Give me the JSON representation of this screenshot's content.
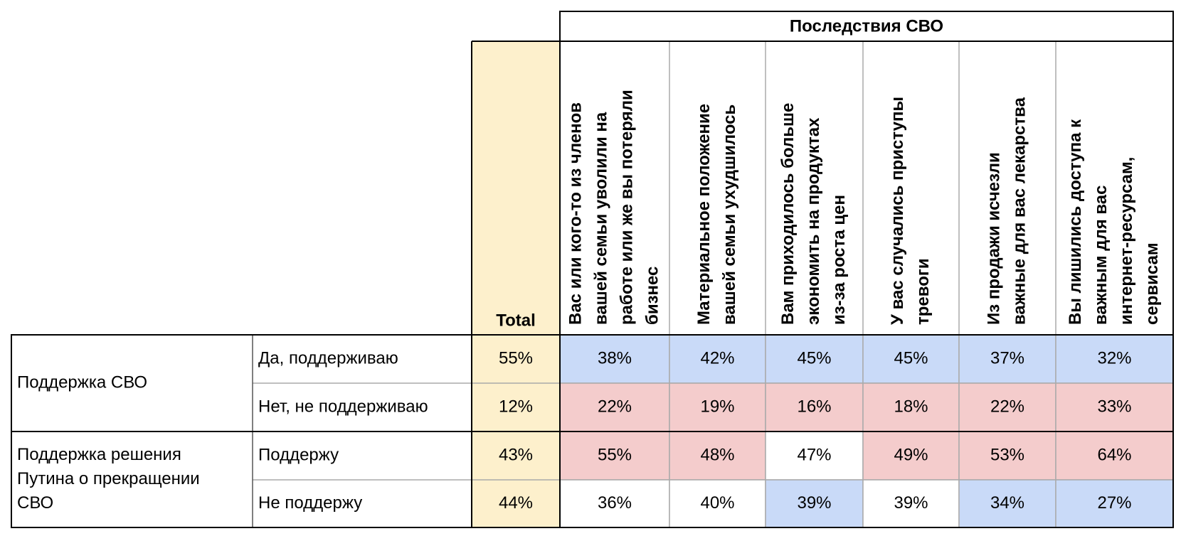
{
  "header": {
    "title": "Последствия СВО",
    "total_label": "Total",
    "columns": [
      [
        "Вас или кого-то из членов",
        "вашей семьи уволили на",
        "работе или же вы потеряли",
        "бизнес"
      ],
      [
        "Материальное положение",
        "вашей семьи ухудшилось"
      ],
      [
        "Вам приходилось больше",
        "экономить на продуктах",
        "из-за роста цен"
      ],
      [
        "У вас случались приступы",
        "тревоги"
      ],
      [
        "Из продажи исчезли",
        "важные для вас лекарства"
      ],
      [
        "Вы лишились доступа к",
        "важным для вас",
        "интернет-ресурсам,",
        "сервисам"
      ]
    ]
  },
  "table": {
    "groups": [
      {
        "label": [
          "Поддержка СВО"
        ],
        "rows": [
          {
            "label": "Да, поддерживаю",
            "total": "55%",
            "values": [
              "38%",
              "42%",
              "45%",
              "45%",
              "37%",
              "32%"
            ],
            "colors": [
              "#c9daf8",
              "#c9daf8",
              "#c9daf8",
              "#c9daf8",
              "#c9daf8",
              "#c9daf8"
            ]
          },
          {
            "label": "Нет, не поддерживаю",
            "total": "12%",
            "values": [
              "22%",
              "19%",
              "16%",
              "18%",
              "22%",
              "33%"
            ],
            "colors": [
              "#f4cccc",
              "#f4cccc",
              "#f4cccc",
              "#f4cccc",
              "#f4cccc",
              "#f4cccc"
            ]
          }
        ]
      },
      {
        "label": [
          "Поддержка решения",
          "Путина о прекращении",
          "СВО"
        ],
        "rows": [
          {
            "label": "Поддержу",
            "total": "43%",
            "values": [
              "55%",
              "48%",
              "47%",
              "49%",
              "53%",
              "64%"
            ],
            "colors": [
              "#f4cccc",
              "#f4cccc",
              "#ffffff",
              "#f4cccc",
              "#f4cccc",
              "#f4cccc"
            ]
          },
          {
            "label": "Не поддержу",
            "total": "44%",
            "values": [
              "36%",
              "40%",
              "39%",
              "39%",
              "34%",
              "27%"
            ],
            "colors": [
              "#ffffff",
              "#ffffff",
              "#c9daf8",
              "#ffffff",
              "#c9daf8",
              "#c9daf8"
            ]
          }
        ]
      }
    ],
    "total_color": "#fdf0cc"
  }
}
